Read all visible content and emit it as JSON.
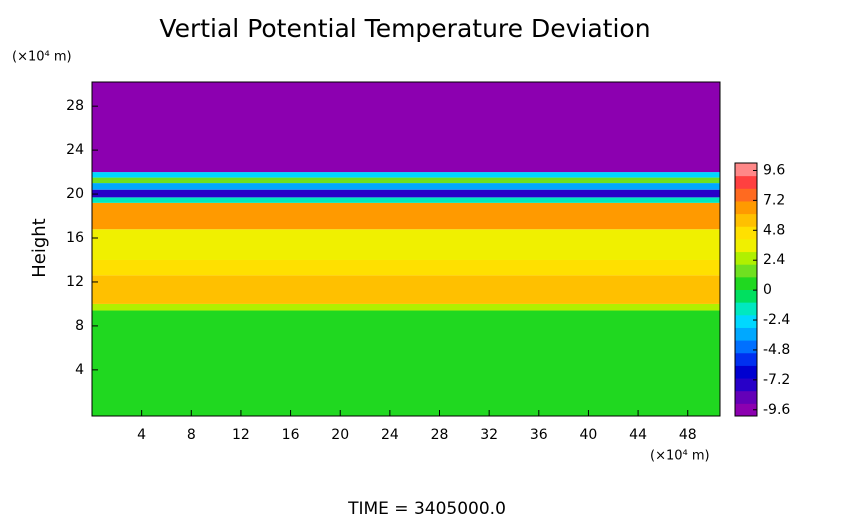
{
  "chart_data": {
    "type": "contour",
    "title": "Vertial Potential Temperature Deviation",
    "y_unit": "(×10⁴ m)",
    "x_unit": "(×10⁴ m)",
    "ylabel": "Height",
    "footer": "TIME = 3405000.0",
    "xlim": [
      0,
      50.6
    ],
    "xticks": [
      4,
      8,
      12,
      16,
      20,
      24,
      28,
      32,
      36,
      40,
      44,
      48
    ],
    "ylim": [
      -0.2,
      30.2
    ],
    "yticks": [
      4,
      8,
      12,
      16,
      20,
      24,
      28
    ],
    "clim": [
      -10.1,
      10.2
    ],
    "cticks": [
      -9.6,
      -7.2,
      -4.8,
      -2.4,
      0,
      2.4,
      4.8,
      7.2,
      9.6
    ],
    "colors": [
      "#8c00b0",
      "#6400b8",
      "#2800c8",
      "#0000d0",
      "#0030f0",
      "#0070ff",
      "#00a8ff",
      "#00d8ff",
      "#00e8c0",
      "#00e060",
      "#20d820",
      "#70e020",
      "#b0f000",
      "#f0f000",
      "#ffe000",
      "#ffc000",
      "#ff9a00",
      "#ff6a20",
      "#ff4040",
      "#ff8888"
    ],
    "bands": [
      {
        "y0": -0.2,
        "y1": 9.4,
        "value": 0.8
      },
      {
        "y0": 9.4,
        "y1": 10.0,
        "value": 2.6
      },
      {
        "y0": 10.0,
        "y1": 12.6,
        "value": 5.4
      },
      {
        "y0": 12.6,
        "y1": 14.0,
        "value": 4.2
      },
      {
        "y0": 14.0,
        "y1": 16.8,
        "value": 3.6
      },
      {
        "y0": 16.8,
        "y1": 19.2,
        "value": 6.2
      },
      {
        "y0": 19.2,
        "y1": 19.7,
        "value": -1.5
      },
      {
        "y0": 19.7,
        "y1": 20.4,
        "value": -8
      },
      {
        "y0": 20.4,
        "y1": 21.0,
        "value": -3.5
      },
      {
        "y0": 21.0,
        "y1": 21.5,
        "value": 1.5
      },
      {
        "y0": 21.5,
        "y1": 22.0,
        "value": -2.5
      },
      {
        "y0": 22.0,
        "y1": 30.2,
        "value": -10
      }
    ]
  }
}
